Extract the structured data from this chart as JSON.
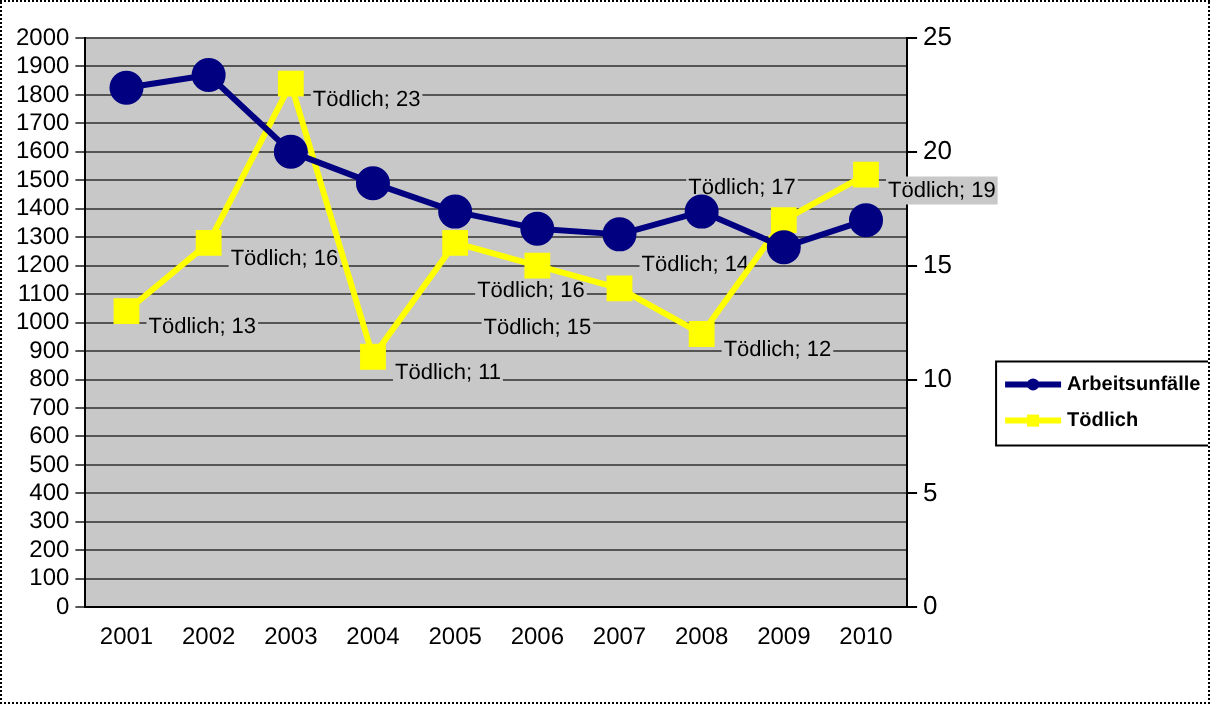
{
  "chart_data": {
    "type": "line",
    "categories": [
      "2001",
      "2002",
      "2003",
      "2004",
      "2005",
      "2006",
      "2007",
      "2008",
      "2009",
      "2010"
    ],
    "series": [
      {
        "name": "Arbeitsunfälle",
        "color": "#000080",
        "marker": "circle",
        "values": [
          1825,
          1870,
          1600,
          1490,
          1390,
          1330,
          1310,
          1390,
          1265,
          1360
        ]
      },
      {
        "name": "Tödlich",
        "color": "#ffff00",
        "marker": "square",
        "axis": "y2",
        "values": [
          13,
          16,
          23,
          11,
          16,
          15,
          14,
          12,
          17,
          19
        ],
        "value_labels": [
          "Tödlich; 13",
          "Tödlich; 16",
          "Tödlich; 23",
          "Tödlich; 11",
          "Tödlich; 16",
          "Tödlich; 15",
          "Tödlich; 14",
          "Tödlich; 12",
          "Tödlich; 17",
          "Tödlich; 19"
        ]
      }
    ],
    "ylim": [
      0,
      2000
    ],
    "yticks": [
      0,
      100,
      200,
      300,
      400,
      500,
      600,
      700,
      800,
      900,
      1000,
      1100,
      1200,
      1300,
      1400,
      1500,
      1600,
      1700,
      1800,
      1900,
      2000
    ],
    "y2lim": [
      0,
      25
    ],
    "y2ticks": [
      0,
      5,
      10,
      15,
      20,
      25
    ],
    "grid": "y",
    "legend": "right",
    "line_style": "solid"
  }
}
